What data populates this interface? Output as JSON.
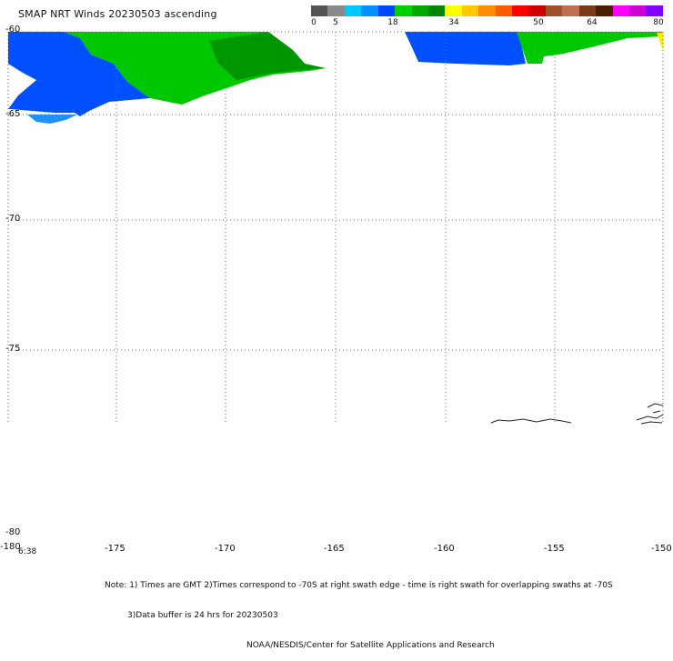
{
  "title": "SMAP NRT Winds 20230503 ascending",
  "colorbar": {
    "segments": [
      "#555555",
      "#8a8a8a",
      "#00c8ff",
      "#0090ff",
      "#0046ff",
      "#00d000",
      "#00a800",
      "#008800",
      "#ffff00",
      "#ffc800",
      "#ff8c00",
      "#ff5a00",
      "#ff0000",
      "#d00000",
      "#a0522d",
      "#c07050",
      "#7a3b1a",
      "#4a2000",
      "#ff00ff",
      "#d000d0",
      "#8000ff"
    ],
    "labels": [
      "0",
      "5",
      "18",
      "34",
      "50",
      "64",
      "80"
    ]
  },
  "map": {
    "lon_labels": [
      "-180",
      "-175",
      "-170",
      "-165",
      "-160",
      "-155",
      "-150"
    ],
    "lat_labels": [
      "-60",
      "-65",
      "-70",
      "-75",
      "-80"
    ],
    "corner_time": "6:38",
    "fill_colors": {
      "green": "#00c800",
      "dark_green": "#009600",
      "blue": "#0050ff",
      "light_blue": "#1e90ff",
      "yellow": "#ffea00"
    }
  },
  "note": {
    "line1": "Note: 1) Times are GMT 2)Times correspond to -70S at right swath edge - time is right swath for overlapping swaths at -70S",
    "line2": "3)Data buffer is 24 hrs for 20230503",
    "line3": "NOAA/NESDIS/Center for Satellite Applications and Research"
  }
}
